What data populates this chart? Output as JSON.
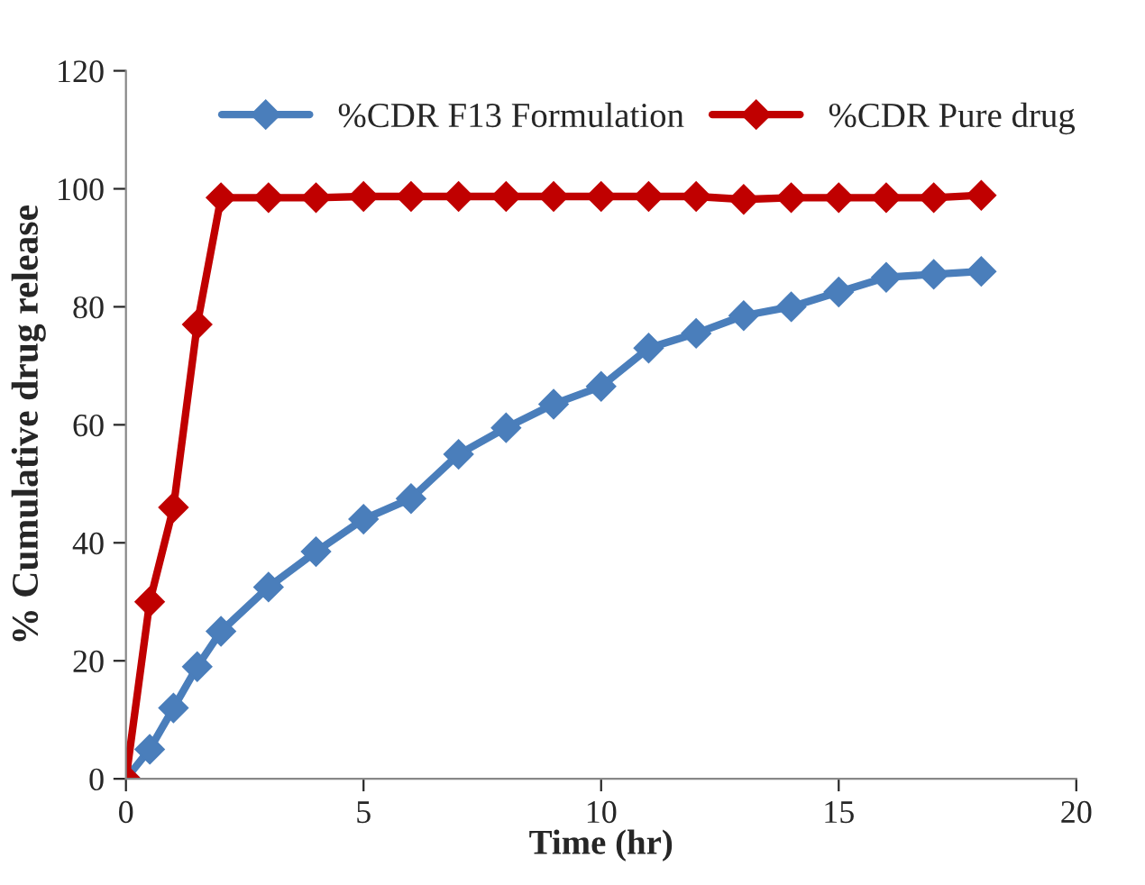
{
  "chart_data": {
    "type": "line",
    "xlabel": "Time (hr)",
    "ylabel": "% Cumulative drug release",
    "x": [
      0,
      0.5,
      1,
      1.5,
      2,
      3,
      4,
      5,
      6,
      7,
      8,
      9,
      10,
      11,
      12,
      13,
      14,
      15,
      16,
      17,
      18
    ],
    "series": [
      {
        "name": "%CDR F13 Formulation",
        "color": "#4a7ebb",
        "values": [
          0,
          5,
          12,
          19,
          25,
          32.5,
          38.5,
          44,
          47.5,
          55,
          59.5,
          63.5,
          66.5,
          73,
          75.5,
          78.5,
          80,
          82.5,
          85,
          85.5,
          86
        ]
      },
      {
        "name": "%CDR Pure drug",
        "color": "#c00000",
        "values": [
          0,
          30,
          46,
          77,
          98.5,
          98.5,
          98.5,
          98.7,
          98.7,
          98.7,
          98.7,
          98.7,
          98.7,
          98.7,
          98.7,
          98.2,
          98.5,
          98.5,
          98.5,
          98.5,
          98.9
        ]
      }
    ],
    "xlim": [
      0,
      20
    ],
    "xticks": [
      0,
      5,
      10,
      15,
      20
    ],
    "ylim": [
      0,
      120
    ],
    "yticks": [
      0,
      20,
      40,
      60,
      80,
      100,
      120
    ],
    "marker": "diamond",
    "line_style": "solid",
    "legend": "top",
    "grid": false
  }
}
